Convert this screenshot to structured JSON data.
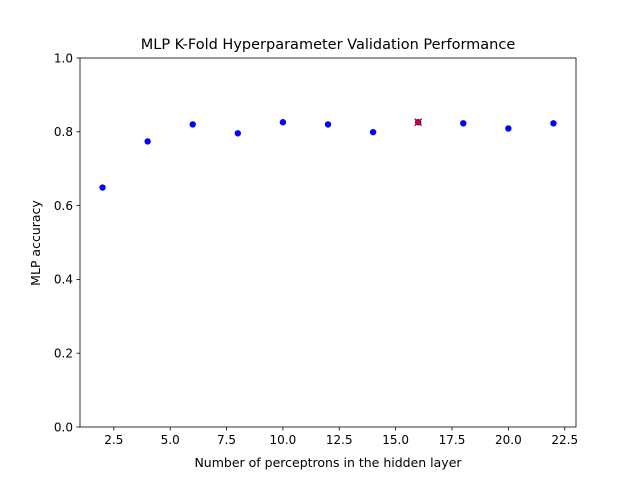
{
  "chart_data": {
    "type": "scatter",
    "title": "MLP K-Fold Hyperparameter Validation Performance",
    "xlabel": "Number of perceptrons in the hidden layer",
    "ylabel": "MLP accuracy",
    "xlim": [
      1.0,
      23.0
    ],
    "ylim": [
      0.0,
      1.0
    ],
    "x_ticks": [
      2.5,
      5.0,
      7.5,
      10.0,
      12.5,
      15.0,
      17.5,
      20.0,
      22.5
    ],
    "x_tick_labels": [
      "2.5",
      "5.0",
      "7.5",
      "10.0",
      "12.5",
      "15.0",
      "17.5",
      "20.0",
      "22.5"
    ],
    "y_ticks": [
      0.0,
      0.2,
      0.4,
      0.6,
      0.8,
      1.0
    ],
    "y_tick_labels": [
      "0.0",
      "0.2",
      "0.4",
      "0.6",
      "0.8",
      "1.0"
    ],
    "grid": false,
    "series": [
      {
        "color": "#0000ff",
        "marker": "circle",
        "x": [
          2,
          4,
          6,
          8,
          10,
          12,
          14,
          16,
          18,
          20,
          22
        ],
        "y": [
          0.649,
          0.774,
          0.82,
          0.796,
          0.826,
          0.82,
          0.799,
          0.826,
          0.823,
          0.809,
          0.823
        ]
      }
    ],
    "highlight": {
      "color": "#ff0000",
      "marker": "x",
      "x": 16,
      "y": 0.826
    }
  }
}
